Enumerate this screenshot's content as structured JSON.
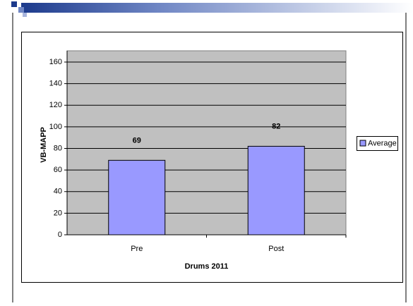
{
  "chart_data": {
    "type": "bar",
    "categories": [
      "Pre",
      "Post"
    ],
    "series": [
      {
        "name": "Average",
        "color": "#9999ff",
        "values": [
          69,
          82
        ]
      }
    ],
    "xlabel": "Drums 2011",
    "ylabel": "VB-MAPP",
    "ylim": [
      0,
      160
    ],
    "yticks": [
      0,
      20,
      40,
      60,
      80,
      100,
      120,
      140,
      160
    ],
    "grid": true,
    "legend": "right"
  }
}
